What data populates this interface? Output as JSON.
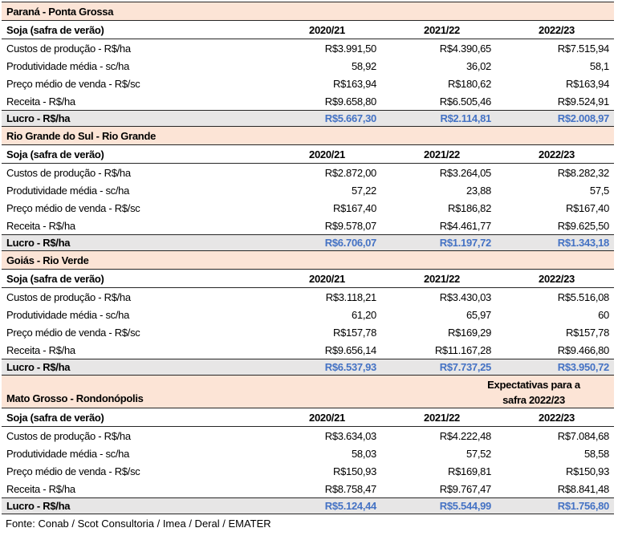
{
  "colors": {
    "region_header_bg": "#fce4d6",
    "lucro_row_bg": "#e7e6e6",
    "lucro_value_text": "#4472c4",
    "border": "#262626"
  },
  "table": {
    "product_label": "Soja (safra de verão)",
    "columns": [
      "2020/21",
      "2021/22",
      "2022/23"
    ],
    "sections": [
      {
        "region": "Paraná - Ponta Grossa",
        "rows": [
          {
            "label": "Custos de produção - R$/ha",
            "values": [
              "R$3.991,50",
              "R$4.390,65",
              "R$7.515,94"
            ]
          },
          {
            "label": "Produtividade média - sc/ha",
            "values": [
              "58,92",
              "36,02",
              "58,1"
            ]
          },
          {
            "label": "Preço médio de venda - R$/sc",
            "values": [
              "R$163,94",
              "R$180,62",
              "R$163,94"
            ]
          },
          {
            "label": "Receita - R$/ha",
            "values": [
              "R$9.658,80",
              "R$6.505,46",
              "R$9.524,91"
            ]
          }
        ],
        "lucro": {
          "label": "Lucro - R$/ha",
          "values": [
            "R$5.667,30",
            "R$2.114,81",
            "R$2.008,97"
          ]
        }
      },
      {
        "region": "Rio Grande do Sul - Rio Grande",
        "rows": [
          {
            "label": "Custos de produção - R$/ha",
            "values": [
              "R$2.872,00",
              "R$3.264,05",
              "R$8.282,32"
            ]
          },
          {
            "label": "Produtividade média - sc/ha",
            "values": [
              "57,22",
              "23,88",
              "57,5"
            ]
          },
          {
            "label": "Preço médio de venda - R$/sc",
            "values": [
              "R$167,40",
              "R$186,82",
              "R$167,40"
            ]
          },
          {
            "label": "Receita - R$/ha",
            "values": [
              "R$9.578,07",
              "R$4.461,77",
              "R$9.625,50"
            ]
          }
        ],
        "lucro": {
          "label": "Lucro - R$/ha",
          "values": [
            "R$6.706,07",
            "R$1.197,72",
            "R$1.343,18"
          ]
        }
      },
      {
        "region": "Goiás - Rio Verde",
        "rows": [
          {
            "label": "Custos de produção - R$/ha",
            "values": [
              "R$3.118,21",
              "R$3.430,03",
              "R$5.516,08"
            ]
          },
          {
            "label": "Produtividade média - sc/ha",
            "values": [
              "61,20",
              "65,97",
              "60"
            ]
          },
          {
            "label": "Preço médio de venda - R$/sc",
            "values": [
              "R$157,78",
              "R$169,29",
              "R$157,78"
            ]
          },
          {
            "label": "Receita - R$/ha",
            "values": [
              "R$9.656,14",
              "R$11.167,28",
              "R$9.466,80"
            ]
          }
        ],
        "lucro": {
          "label": "Lucro - R$/ha",
          "values": [
            "R$6.537,93",
            "R$7.737,25",
            "R$3.950,72"
          ]
        }
      },
      {
        "region": "Mato Grosso - Rondonópolis",
        "note": [
          "Expectativas para a",
          "safra 2022/23"
        ],
        "rows": [
          {
            "label": "Custos de produção - R$/ha",
            "values": [
              "R$3.634,03",
              "R$4.222,48",
              "R$7.084,68"
            ]
          },
          {
            "label": "Produtividade média - sc/ha",
            "values": [
              "58,03",
              "57,52",
              "58,58"
            ]
          },
          {
            "label": "Preço médio de venda - R$/sc",
            "values": [
              "R$150,93",
              "R$169,81",
              "R$150,93"
            ]
          },
          {
            "label": "Receita - R$/ha",
            "values": [
              "R$8.758,47",
              "R$9.767,47",
              "R$8.841,48"
            ]
          }
        ],
        "lucro": {
          "label": "Lucro - R$/ha",
          "values": [
            "R$5.124,44",
            "R$5.544,99",
            "R$1.756,80"
          ]
        }
      }
    ],
    "footer": "Fonte: Conab / Scot Consultoria / Imea / Deral / EMATER"
  }
}
